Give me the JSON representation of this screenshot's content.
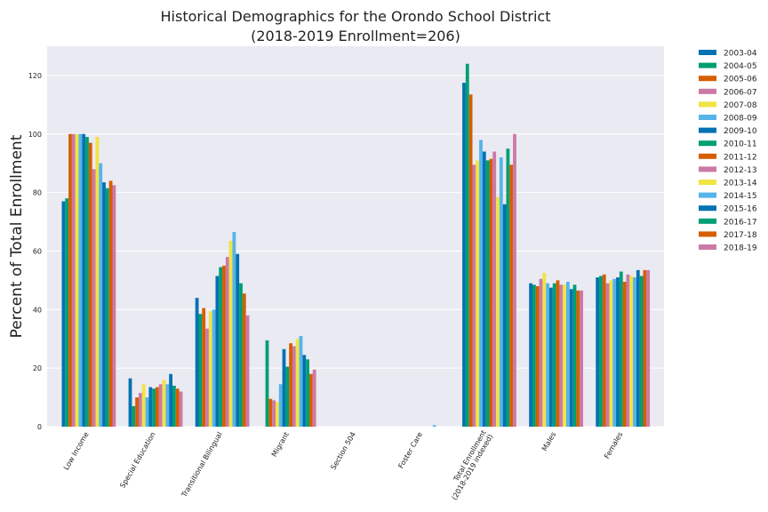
{
  "chart_data": {
    "type": "bar",
    "title_line1": "Historical Demographics for the Orondo School District",
    "title_line2": "(2018-2019 Enrollment=206)",
    "xlabel": "",
    "ylabel": "Percent of Total Enrollment",
    "ylim": [
      0,
      130
    ],
    "yticks": [
      "0",
      "20",
      "40",
      "60",
      "80",
      "100",
      "120"
    ],
    "grid": true,
    "legend_position": "outside-right",
    "categories": [
      "Low Income",
      "Special Education",
      "Transitional Bilingual",
      "Migrant",
      "Section 504",
      "Foster Care",
      "Total Enrollment\n(2018-2019 indexed)",
      "Males",
      "Females"
    ],
    "series": [
      {
        "name": "2003-04",
        "color": "#0072b2",
        "values": [
          77,
          16.5,
          44,
          0,
          0,
          0,
          117.5,
          49,
          51
        ]
      },
      {
        "name": "2004-05",
        "color": "#009e73",
        "values": [
          78,
          7,
          38.5,
          29.5,
          0,
          0,
          124,
          48.5,
          51.5
        ]
      },
      {
        "name": "2005-06",
        "color": "#d55e00",
        "values": [
          100,
          10,
          40.5,
          9.5,
          0,
          0,
          113.5,
          48,
          52
        ]
      },
      {
        "name": "2006-07",
        "color": "#cc79a7",
        "values": [
          100,
          11.5,
          33.5,
          9,
          0,
          0,
          89.5,
          50.5,
          49
        ]
      },
      {
        "name": "2007-08",
        "color": "#f0e442",
        "values": [
          100,
          14.5,
          39.5,
          8.5,
          0,
          0,
          91,
          52.5,
          50
        ]
      },
      {
        "name": "2008-09",
        "color": "#56b4e9",
        "values": [
          100,
          10,
          40,
          14.5,
          0,
          0,
          98,
          49,
          50.5
        ]
      },
      {
        "name": "2009-10",
        "color": "#0072b2",
        "values": [
          100,
          13.5,
          51.5,
          26.5,
          0,
          0,
          94,
          47.5,
          51
        ]
      },
      {
        "name": "2010-11",
        "color": "#009e73",
        "values": [
          99,
          13,
          54.5,
          20.5,
          0,
          0,
          91,
          49,
          53
        ]
      },
      {
        "name": "2011-12",
        "color": "#d55e00",
        "values": [
          97,
          13.5,
          55,
          28.5,
          0,
          0,
          91.5,
          50,
          49.5
        ]
      },
      {
        "name": "2012-13",
        "color": "#cc79a7",
        "values": [
          88,
          14.5,
          58,
          27.5,
          0,
          0,
          94,
          48.5,
          52
        ]
      },
      {
        "name": "2013-14",
        "color": "#f0e442",
        "values": [
          99,
          16,
          63.5,
          30,
          0,
          0,
          78.5,
          48.5,
          51.5
        ]
      },
      {
        "name": "2014-15",
        "color": "#56b4e9",
        "values": [
          90,
          14.5,
          66.5,
          31,
          0,
          0.5,
          92,
          49.5,
          51
        ]
      },
      {
        "name": "2015-16",
        "color": "#0072b2",
        "values": [
          83.5,
          18,
          59,
          24.5,
          0,
          0,
          76,
          47,
          53.5
        ]
      },
      {
        "name": "2016-17",
        "color": "#009e73",
        "values": [
          81.5,
          14,
          49,
          23,
          0,
          0,
          95,
          48.5,
          51.5
        ]
      },
      {
        "name": "2017-18",
        "color": "#d55e00",
        "values": [
          84,
          13,
          45.5,
          18,
          0,
          0,
          89.5,
          46.5,
          53.5
        ]
      },
      {
        "name": "2018-19",
        "color": "#cc79a7",
        "values": [
          82.5,
          12,
          38,
          19.5,
          0,
          0,
          100,
          46.5,
          53.5
        ]
      }
    ]
  }
}
